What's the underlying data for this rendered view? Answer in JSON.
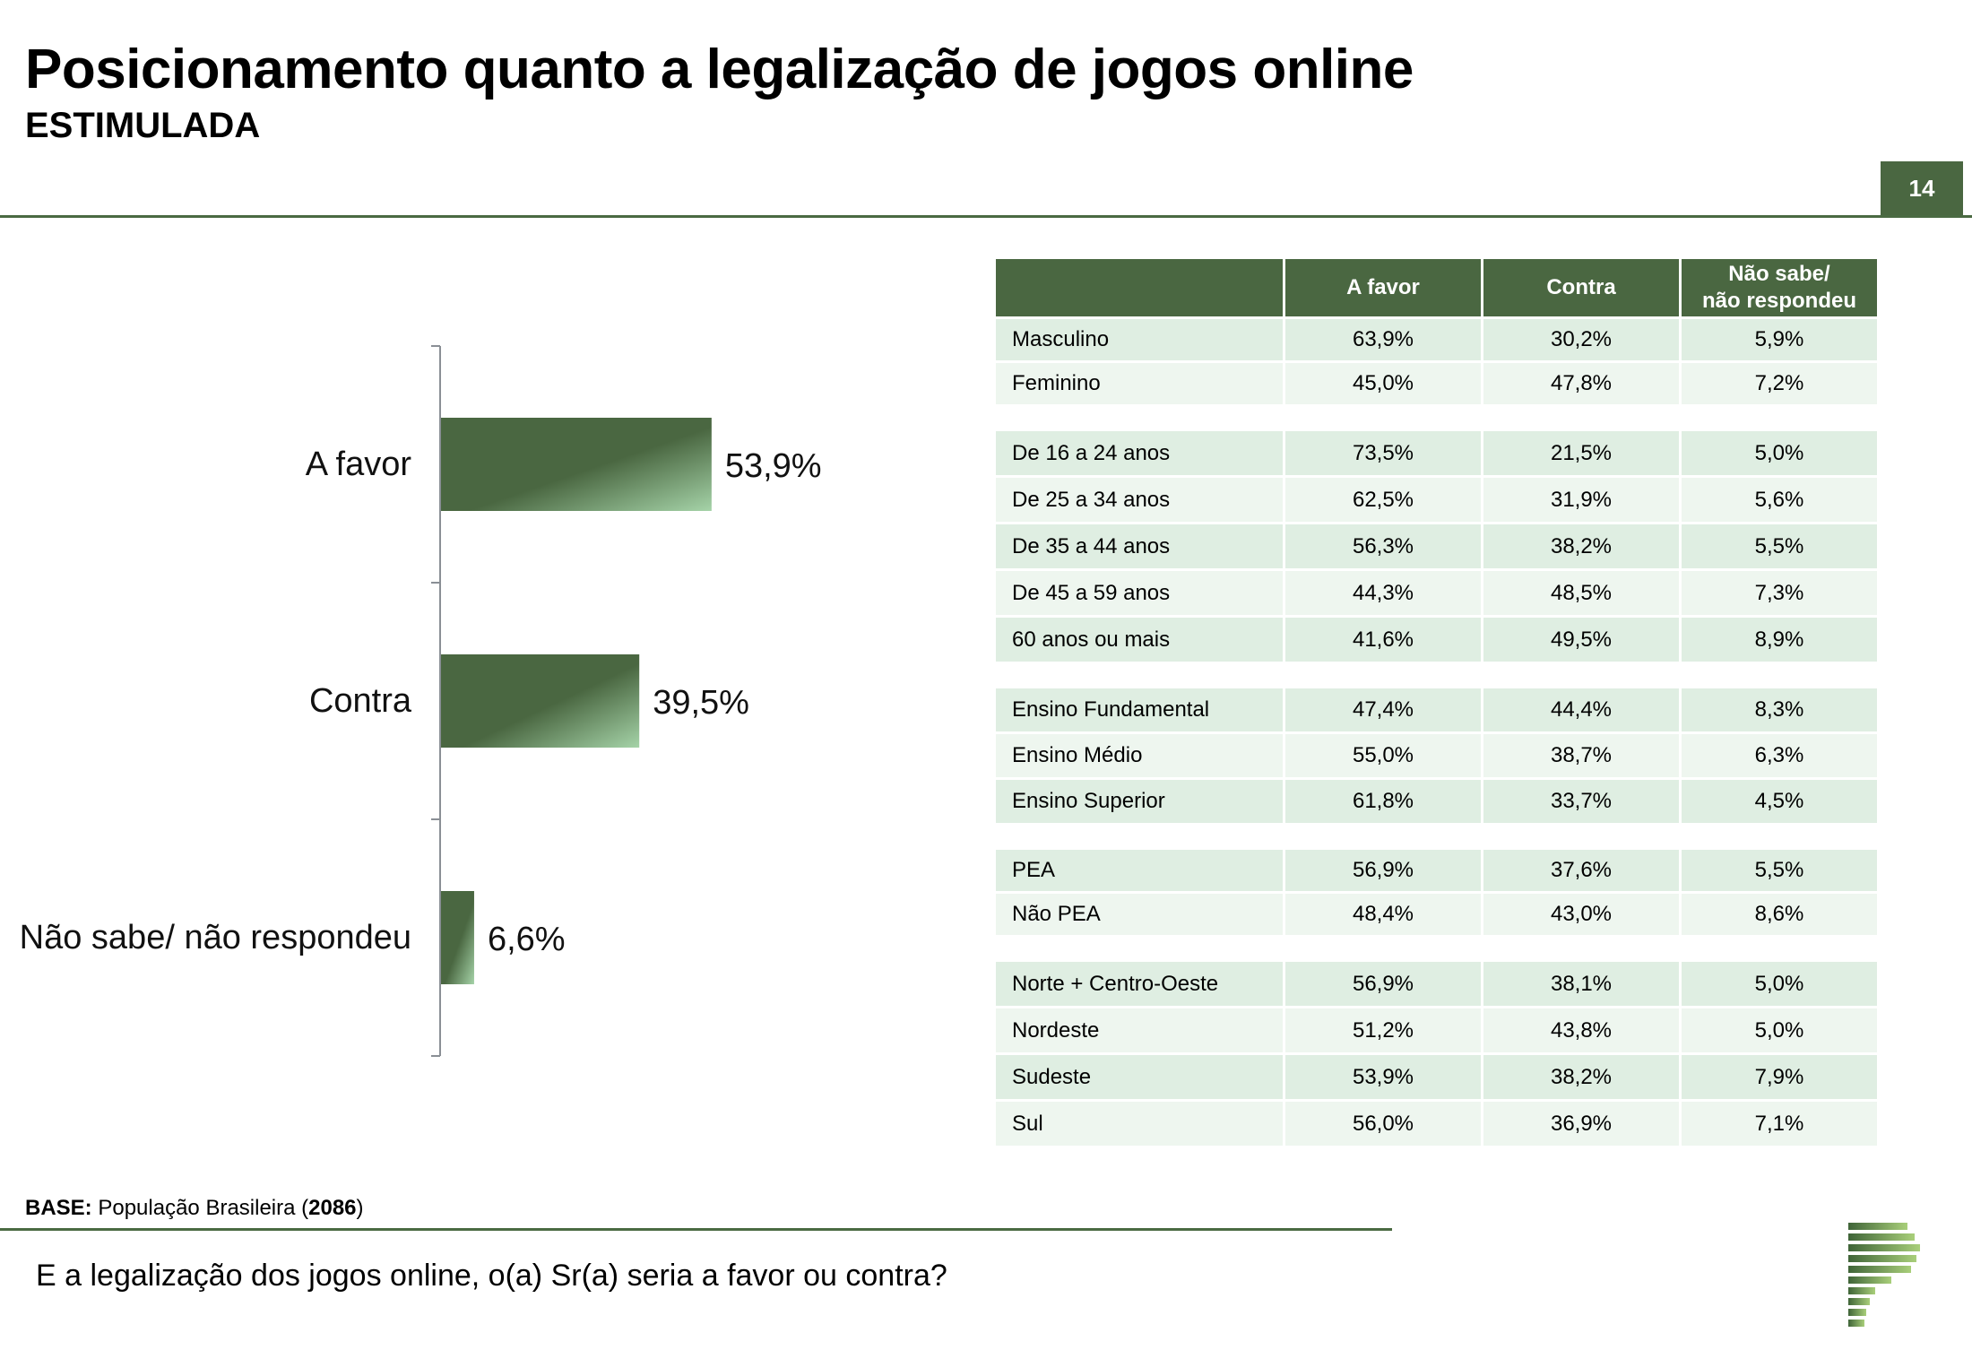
{
  "header": {
    "title": "Posicionamento quanto a legalização de jogos online",
    "subtitle": "ESTIMULADA",
    "page_number": "14"
  },
  "chart_data": {
    "type": "bar",
    "orientation": "horizontal",
    "categories": [
      "A favor",
      "Contra",
      "Não sabe/ não respondeu"
    ],
    "values": [
      53.9,
      39.5,
      6.6
    ],
    "value_labels": [
      "53,9%",
      "39,5%",
      "6,6%"
    ],
    "unit": "%",
    "xlim": [
      0,
      100
    ],
    "grid": false,
    "legend": "none",
    "bar_color": "#4a6741"
  },
  "table": {
    "columns": [
      "",
      "A favor",
      "Contra",
      "Não sabe/\nnão respondeu"
    ],
    "groups": [
      [
        [
          "Masculino",
          "63,9%",
          "30,2%",
          "5,9%"
        ],
        [
          "Feminino",
          "45,0%",
          "47,8%",
          "7,2%"
        ]
      ],
      [
        [
          "De 16 a 24 anos",
          "73,5%",
          "21,5%",
          "5,0%"
        ],
        [
          "De 25 a 34 anos",
          "62,5%",
          "31,9%",
          "5,6%"
        ],
        [
          "De 35 a 44 anos",
          "56,3%",
          "38,2%",
          "5,5%"
        ],
        [
          "De 45 a 59 anos",
          "44,3%",
          "48,5%",
          "7,3%"
        ],
        [
          "60 anos ou mais",
          "41,6%",
          "49,5%",
          "8,9%"
        ]
      ],
      [
        [
          "Ensino Fundamental",
          "47,4%",
          "44,4%",
          "8,3%"
        ],
        [
          "Ensino Médio",
          "55,0%",
          "38,7%",
          "6,3%"
        ],
        [
          "Ensino Superior",
          "61,8%",
          "33,7%",
          "4,5%"
        ]
      ],
      [
        [
          " PEA",
          "56,9%",
          "37,6%",
          "5,5%"
        ],
        [
          " Não PEA",
          "48,4%",
          "43,0%",
          "8,6%"
        ]
      ],
      [
        [
          "Norte + Centro-Oeste",
          "56,9%",
          "38,1%",
          "5,0%"
        ],
        [
          "Nordeste",
          "51,2%",
          "43,8%",
          "5,0%"
        ],
        [
          "Sudeste",
          "53,9%",
          "38,2%",
          "7,9%"
        ],
        [
          "Sul",
          "56,0%",
          "36,9%",
          "7,1%"
        ]
      ]
    ]
  },
  "footer": {
    "base_label": "BASE:",
    "base_text": "População Brasileira (",
    "base_count": "2086",
    "base_close": ")",
    "question": "E a legalização dos jogos online, o(a) Sr(a) seria a favor ou contra?"
  },
  "colors": {
    "accent": "#4a6741",
    "row_dark": "#dfeee2",
    "row_light": "#eef6ef",
    "bar_highlight": "#9ccba0"
  }
}
